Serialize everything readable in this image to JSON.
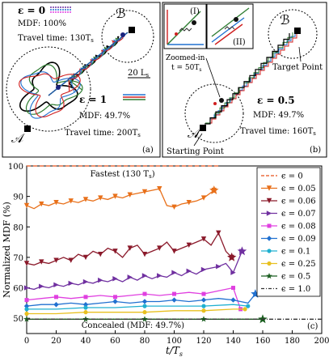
{
  "panel_a": {
    "label": "(a)",
    "eps0_label": "ε = 0",
    "eps0_mdf": "MDF: 100%",
    "eps0_time": "Travel time: 130T",
    "eps0_time_sub": "s",
    "eps1_label": "ε = 1",
    "eps1_mdf": "MDF: 49.7%",
    "eps1_time": "Travel time: 200T",
    "eps1_time_sub": "s",
    "scale_bar": "20 L",
    "scale_bar_sub": "s",
    "point_a": "𝒜",
    "point_b": "ℬ"
  },
  "panel_b": {
    "label": "(b)",
    "inset1": "(I)",
    "inset2": "(II)",
    "zoom_line1": "Zoomed-in",
    "zoom_line2": "t = 50T",
    "zoom_sub": "s",
    "target": "Target Point",
    "start": "Starting Point",
    "eps_label": "ε = 0.5",
    "mdf": "MDF: 49.7%",
    "time": "Travel time: 160T",
    "time_sub": "s",
    "point_a": "𝒜",
    "point_b": "ℬ"
  },
  "colors": {
    "orange": "#E8701A",
    "maroon": "#8B1A2B",
    "purple": "#7030A0",
    "magenta": "#E040E0",
    "blue": "#2070D0",
    "cyan": "#20B0D0",
    "yellow": "#E8C020",
    "green": "#2E7D32",
    "darkgreen": "#1B5E20",
    "fastest": "#E8501A"
  },
  "chart_data": {
    "type": "line",
    "panel_label": "(c)",
    "xlabel": "t/T",
    "xlabel_sub": "s",
    "ylabel": "Normalized MDF (%)",
    "xlim": [
      0,
      200
    ],
    "ylim": [
      45,
      100
    ],
    "xticks": [
      0,
      20,
      40,
      60,
      80,
      100,
      120,
      140,
      160,
      180,
      200
    ],
    "yticks": [
      50,
      60,
      70,
      80,
      90,
      100
    ],
    "annotation_fastest": "Fastest (130 T",
    "annotation_fastest_sub": "s",
    "annotation_fastest_end": ")",
    "annotation_concealed": "Concealed (MDF: 49.7%)",
    "series": [
      {
        "name": "ϵ = 0",
        "color": "#E8501A",
        "style": "dashed",
        "marker": "none",
        "x": [
          0,
          130
        ],
        "y": [
          100,
          100
        ]
      },
      {
        "name": "ϵ = 0.05",
        "color": "#E8701A",
        "style": "solid",
        "marker": "tri-down",
        "x": [
          0,
          5,
          10,
          15,
          20,
          25,
          30,
          35,
          40,
          45,
          50,
          55,
          60,
          65,
          70,
          75,
          80,
          85,
          90,
          95,
          100,
          105,
          110,
          115,
          120,
          127
        ],
        "y": [
          87,
          86,
          87.5,
          87,
          88,
          87.5,
          88.5,
          88,
          89,
          88.5,
          89.5,
          89,
          90,
          89.5,
          90.5,
          91,
          91.5,
          92,
          92.5,
          87,
          86.5,
          87.5,
          88,
          88.5,
          89.5,
          92
        ]
      },
      {
        "name": "ϵ = 0.06",
        "color": "#8B1A2B",
        "style": "solid",
        "marker": "tri-down",
        "x": [
          0,
          5,
          10,
          15,
          20,
          25,
          30,
          35,
          40,
          45,
          50,
          55,
          60,
          65,
          70,
          75,
          80,
          85,
          90,
          95,
          100,
          105,
          110,
          115,
          120,
          125,
          130,
          135,
          139
        ],
        "y": [
          68,
          67.5,
          68.5,
          68,
          69,
          70,
          69,
          71,
          70,
          72,
          71,
          73,
          72,
          70,
          73,
          74,
          71,
          72,
          73,
          75,
          72,
          73,
          74,
          75,
          76,
          74,
          78,
          72,
          70
        ]
      },
      {
        "name": "ϵ = 0.07",
        "color": "#7030A0",
        "style": "solid",
        "marker": "tri-right",
        "x": [
          0,
          5,
          10,
          15,
          20,
          25,
          30,
          35,
          40,
          45,
          50,
          55,
          60,
          65,
          70,
          75,
          80,
          85,
          90,
          95,
          100,
          105,
          110,
          115,
          120,
          125,
          130,
          135,
          140,
          146
        ],
        "y": [
          60,
          59.5,
          60.5,
          60,
          61,
          60.5,
          61.5,
          61,
          62,
          61.5,
          62.5,
          62,
          63,
          62,
          63.5,
          62.5,
          64,
          63,
          64,
          63.5,
          65,
          64,
          65.5,
          64.5,
          66,
          66.5,
          67,
          68,
          65,
          72
        ]
      },
      {
        "name": "ϵ = 0.08",
        "color": "#E040E0",
        "style": "solid",
        "marker": "square",
        "x": [
          0,
          10,
          20,
          30,
          40,
          50,
          60,
          70,
          80,
          90,
          100,
          110,
          120,
          130,
          140,
          145
        ],
        "y": [
          56,
          56.5,
          57,
          56.5,
          57,
          57.5,
          57,
          57.5,
          58,
          57.5,
          58,
          58.5,
          58,
          59,
          60,
          53
        ]
      },
      {
        "name": "ϵ = 0.09",
        "color": "#2070D0",
        "style": "solid",
        "marker": "diamond",
        "x": [
          0,
          10,
          20,
          30,
          40,
          50,
          60,
          70,
          80,
          90,
          100,
          110,
          120,
          130,
          140,
          150,
          155
        ],
        "y": [
          54,
          54.5,
          54.5,
          55,
          54.5,
          55,
          55.5,
          55,
          55.5,
          55.5,
          56,
          55.5,
          56,
          56.5,
          56,
          55,
          58
        ]
      },
      {
        "name": "ϵ = 0.1",
        "color": "#20B0D0",
        "style": "solid",
        "marker": "pentagon",
        "x": [
          0,
          20,
          40,
          60,
          80,
          100,
          120,
          140,
          150
        ],
        "y": [
          53,
          53,
          53.5,
          53.5,
          54,
          54,
          54,
          54.5,
          54
        ]
      },
      {
        "name": "ϵ = 0.25",
        "color": "#E8C020",
        "style": "solid",
        "marker": "circle",
        "x": [
          0,
          20,
          40,
          60,
          80,
          100,
          120,
          140,
          148
        ],
        "y": [
          51.5,
          51.5,
          52,
          52,
          52,
          52.5,
          52.5,
          53,
          53
        ]
      },
      {
        "name": "ϵ = 0.5",
        "color": "#1B5E20",
        "style": "solid",
        "marker": "star",
        "x": [
          0,
          20,
          40,
          60,
          80,
          100,
          120,
          140,
          160
        ],
        "y": [
          49.7,
          49.7,
          49.7,
          49.7,
          49.7,
          49.7,
          49.7,
          49.7,
          49.7
        ]
      },
      {
        "name": "ϵ = 1.0",
        "color": "#333333",
        "style": "dashdot",
        "marker": "none",
        "x": [
          0,
          200
        ],
        "y": [
          49.7,
          49.7
        ]
      }
    ]
  }
}
